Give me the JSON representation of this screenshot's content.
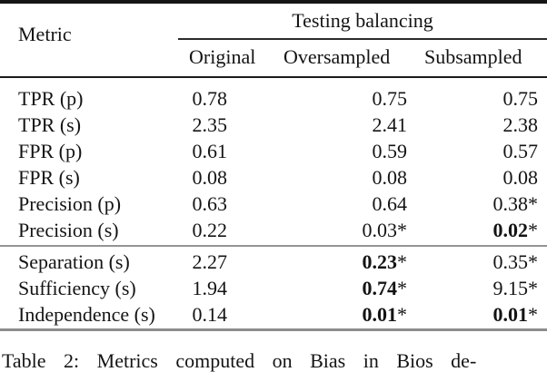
{
  "colors": {
    "text": "#141414",
    "rule_dark": "#1b1b1b",
    "rule_gray": "#8d8d8d"
  },
  "table": {
    "corner_header": "Metric",
    "group_header": "Testing balancing",
    "columns": [
      "Original",
      "Oversampled",
      "Subsampled"
    ],
    "rows": [
      {
        "metric": "TPR (p)",
        "values": [
          {
            "num": "0.78",
            "star": "",
            "cls": ""
          },
          {
            "num": "0.75",
            "star": "",
            "cls": ""
          },
          {
            "num": "0.75",
            "star": "",
            "cls": ""
          }
        ]
      },
      {
        "metric": "TPR (s)",
        "values": [
          {
            "num": "2.35",
            "star": "",
            "cls": ""
          },
          {
            "num": "2.41",
            "star": "",
            "cls": ""
          },
          {
            "num": "2.38",
            "star": "",
            "cls": ""
          }
        ]
      },
      {
        "metric": "FPR (p)",
        "values": [
          {
            "num": "0.61",
            "star": "",
            "cls": ""
          },
          {
            "num": "0.59",
            "star": "",
            "cls": ""
          },
          {
            "num": "0.57",
            "star": "",
            "cls": ""
          }
        ]
      },
      {
        "metric": "FPR (s)",
        "values": [
          {
            "num": "0.08",
            "star": "",
            "cls": ""
          },
          {
            "num": "0.08",
            "star": "",
            "cls": ""
          },
          {
            "num": "0.08",
            "star": "",
            "cls": ""
          }
        ]
      },
      {
        "metric": "Precision (p)",
        "values": [
          {
            "num": "0.63",
            "star": "",
            "cls": ""
          },
          {
            "num": "0.64",
            "star": "",
            "cls": ""
          },
          {
            "num": "0.38",
            "star": "*",
            "cls": ""
          }
        ]
      },
      {
        "metric": "Precision (s)",
        "values": [
          {
            "num": "0.22",
            "star": "",
            "cls": ""
          },
          {
            "num": "0.03",
            "star": "*",
            "cls": ""
          },
          {
            "num": "0.02",
            "star": "*",
            "cls": "b"
          }
        ]
      },
      {
        "metric": "Separation (s)",
        "values": [
          {
            "num": "2.27",
            "star": "",
            "cls": ""
          },
          {
            "num": "0.23",
            "star": "*",
            "cls": "b"
          },
          {
            "num": "0.35",
            "star": "*",
            "cls": ""
          }
        ]
      },
      {
        "metric": "Sufficiency (s)",
        "values": [
          {
            "num": "1.94",
            "star": "",
            "cls": ""
          },
          {
            "num": "0.74",
            "star": "*",
            "cls": "b"
          },
          {
            "num": "9.15",
            "star": "*",
            "cls": ""
          }
        ]
      },
      {
        "metric": "Independence (s)",
        "values": [
          {
            "num": "0.14",
            "star": "",
            "cls": ""
          },
          {
            "num": "0.01",
            "star": "*",
            "cls": "b"
          },
          {
            "num": "0.01",
            "star": "*",
            "cls": "b"
          }
        ]
      }
    ]
  },
  "caption": {
    "text": "Table 2: Metrics computed on Bias in Bios de-"
  }
}
